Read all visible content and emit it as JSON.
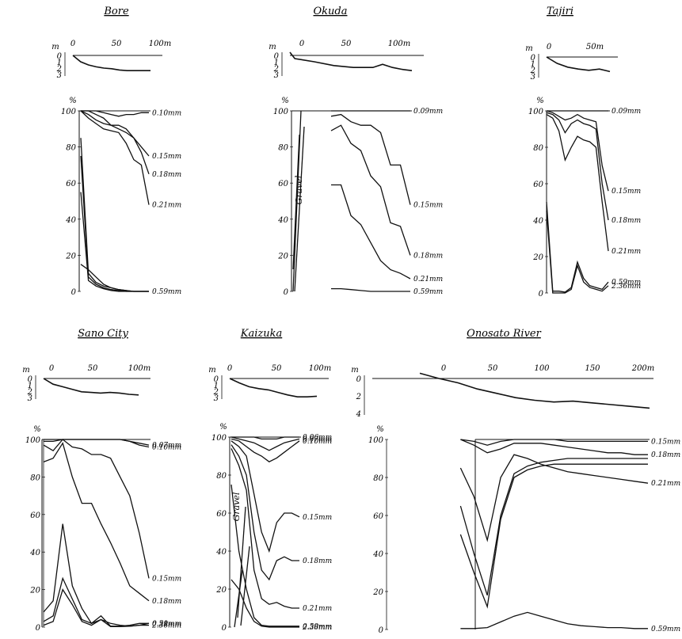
{
  "figure": {
    "panels": [
      {
        "title": "Bore",
        "profile": {
          "x_ticks": [
            "0",
            "50",
            "100m"
          ],
          "y_unit": "m",
          "y_ticks": [
            "0",
            "1",
            "2",
            "3"
          ]
        },
        "grain": {
          "y_unit": "%",
          "y_ticks": [
            "100",
            "80",
            "60",
            "40",
            "20",
            "0"
          ]
        }
      },
      {
        "title": "Okuda",
        "profile": {
          "x_ticks": [
            "0",
            "50",
            "100m"
          ],
          "y_unit": "m",
          "y_ticks": [
            "0",
            "1",
            "2",
            "3"
          ]
        },
        "grain": {
          "y_unit": "%",
          "y_ticks": [
            "100",
            "80",
            "60",
            "40",
            "20",
            "0"
          ]
        },
        "annotation": "Gravel"
      },
      {
        "title": "Tajiri",
        "profile": {
          "x_ticks": [
            "0",
            "50m"
          ],
          "y_unit": "m",
          "y_ticks": [
            "0",
            "1",
            "2",
            "3"
          ]
        },
        "grain": {
          "y_unit": "%",
          "y_ticks": [
            "100",
            "80",
            "60",
            "40",
            "20",
            "0"
          ]
        }
      },
      {
        "title": "Sano City",
        "profile": {
          "x_ticks": [
            "0",
            "50",
            "100m"
          ],
          "y_unit": "m",
          "y_ticks": [
            "0",
            "1",
            "2",
            "3"
          ]
        },
        "grain": {
          "y_unit": "%",
          "y_ticks": [
            "100",
            "80",
            "60",
            "40",
            "20",
            "0"
          ]
        }
      },
      {
        "title": "Kaizuka",
        "profile": {
          "x_ticks": [
            "0",
            "50",
            "100m"
          ],
          "y_unit": "m",
          "y_ticks": [
            "0",
            "1",
            "2",
            "3"
          ]
        },
        "grain": {
          "y_unit": "%",
          "y_ticks": [
            "100",
            "80",
            "60",
            "40",
            "20",
            "0"
          ]
        },
        "annotation": "Gravel"
      },
      {
        "title": "Onosato River",
        "profile": {
          "x_ticks": [
            "0",
            "50",
            "100",
            "150",
            "200m"
          ],
          "y_unit": "m",
          "y_ticks": [
            "0",
            "2",
            "4"
          ]
        },
        "grain": {
          "y_unit": "%",
          "y_ticks": [
            "100",
            "80",
            "60",
            "40",
            "20",
            "0"
          ]
        }
      }
    ]
  },
  "chart_data": [
    {
      "type": "line",
      "title": "Bore",
      "part": "beach profile",
      "x": [
        0,
        10,
        20,
        30,
        40,
        50,
        60,
        70,
        80,
        90,
        100
      ],
      "xlim": [
        0,
        100
      ],
      "ylim": [
        3,
        0
      ],
      "series": [
        {
          "values": [
            0,
            1,
            1.5,
            1.8,
            2,
            2.1,
            2.3,
            2.4,
            2.4,
            2.4,
            2.4
          ]
        }
      ]
    },
    {
      "type": "line",
      "title": "Bore",
      "part": "grain size",
      "ylim": [
        0,
        100
      ],
      "x": [
        0,
        10,
        20,
        30,
        40,
        50,
        60,
        70,
        80,
        90
      ],
      "xlim": [
        0,
        90
      ],
      "series": [
        {
          "name": "0.10mm",
          "values": [
            100,
            100,
            100,
            99,
            98,
            97,
            98,
            98,
            99,
            99
          ]
        },
        {
          "name": "0.15mm",
          "values": [
            100,
            100,
            98,
            96,
            92,
            90,
            88,
            85,
            80,
            75
          ]
        },
        {
          "name": "0.18mm",
          "values": [
            100,
            98,
            95,
            93,
            92,
            92,
            90,
            85,
            77,
            65
          ]
        },
        {
          "name": "0.21mm",
          "values": [
            100,
            96,
            93,
            90,
            89,
            88,
            82,
            73,
            70,
            48
          ]
        },
        {
          "name": "0.59mm",
          "values": [
            15,
            12,
            8,
            4,
            2,
            1,
            0.5,
            0,
            0,
            0
          ]
        },
        {
          "values": [
            85,
            10,
            5,
            3,
            2,
            1,
            0.5,
            0,
            0,
            0
          ]
        },
        {
          "values": [
            75,
            8,
            4,
            2,
            1,
            0.5,
            0,
            0,
            0,
            0
          ]
        },
        {
          "values": [
            55,
            6,
            3,
            1.5,
            0.5,
            0,
            0,
            0,
            0,
            0
          ]
        }
      ]
    },
    {
      "type": "line",
      "title": "Okuda",
      "part": "beach profile",
      "x": [
        -5,
        0,
        20,
        40,
        60,
        70,
        80,
        90,
        100,
        110,
        120
      ],
      "xlim": [
        -5,
        120
      ],
      "ylim": [
        3,
        0
      ],
      "series": [
        {
          "values": [
            -0.5,
            0.5,
            1,
            1.6,
            1.9,
            1.9,
            1.9,
            1.4,
            1.9,
            2.2,
            2.4
          ]
        }
      ]
    },
    {
      "type": "line",
      "title": "Okuda",
      "part": "grain size",
      "ylim": [
        0,
        100
      ],
      "x": [
        40,
        50,
        60,
        70,
        80,
        90,
        100,
        110,
        120
      ],
      "xlim": [
        0,
        120
      ],
      "series": [
        {
          "name": "0.09mm",
          "values": [
            100,
            100,
            100,
            100,
            100,
            100,
            100,
            100,
            100
          ]
        },
        {
          "name": "0.15mm",
          "values": [
            97,
            98,
            94,
            92,
            92,
            88,
            70,
            70,
            48
          ]
        },
        {
          "name": "0.18mm",
          "values": [
            89,
            92,
            82,
            78,
            64,
            58,
            38,
            36,
            20
          ]
        },
        {
          "name": "0.21mm",
          "values": [
            59,
            59,
            42,
            37,
            27,
            17,
            12,
            10,
            7
          ]
        },
        {
          "name": "0.59mm",
          "values": [
            1.5,
            1.5,
            1,
            0.5,
            0,
            0,
            0,
            0,
            0
          ]
        }
      ]
    },
    {
      "type": "line",
      "title": "Tajiri",
      "part": "beach profile",
      "x": [
        0,
        10,
        20,
        30,
        40,
        50,
        60
      ],
      "xlim": [
        0,
        60
      ],
      "ylim": [
        3,
        0
      ],
      "series": [
        {
          "values": [
            0,
            1,
            1.6,
            1.9,
            2.1,
            1.9,
            2.3
          ]
        }
      ]
    },
    {
      "type": "line",
      "title": "Tajiri",
      "part": "grain size",
      "ylim": [
        0,
        100
      ],
      "x": [
        0,
        5,
        10,
        15,
        20,
        25,
        30,
        35,
        40,
        45,
        50
      ],
      "xlim": [
        0,
        50
      ],
      "series": [
        {
          "name": "0.09mm",
          "values": [
            100,
            100,
            100,
            100,
            100,
            100,
            100,
            100,
            100,
            100,
            100
          ]
        },
        {
          "name": "0.15mm",
          "values": [
            100,
            99,
            97,
            95,
            96,
            98,
            96,
            95,
            94,
            70,
            56
          ]
        },
        {
          "name": "0.18mm",
          "values": [
            99,
            98,
            95,
            88,
            93,
            95,
            93,
            92,
            90,
            60,
            40
          ]
        },
        {
          "name": "0.21mm",
          "values": [
            98,
            96,
            89,
            73,
            80,
            86,
            84,
            83,
            80,
            50,
            23
          ]
        },
        {
          "name": "0.59mm",
          "values": [
            50,
            1,
            1,
            0.5,
            3,
            17,
            8,
            4,
            3,
            2,
            6
          ]
        },
        {
          "name": "2.36mm",
          "values": [
            45,
            0,
            0,
            0,
            2,
            15,
            6,
            3,
            2,
            1,
            4
          ]
        }
      ]
    },
    {
      "type": "line",
      "title": "Sano City",
      "part": "beach profile",
      "x": [
        0,
        10,
        20,
        30,
        40,
        50,
        60,
        70,
        80,
        90,
        100
      ],
      "xlim": [
        0,
        100
      ],
      "ylim": [
        3,
        0
      ],
      "series": [
        {
          "values": [
            0,
            0.9,
            1.3,
            1.7,
            2.1,
            2.2,
            2.3,
            2.2,
            2.3,
            2.5,
            2.6
          ]
        }
      ]
    },
    {
      "type": "line",
      "title": "Sano City",
      "part": "grain size",
      "ylim": [
        0,
        100
      ],
      "x": [
        0,
        10,
        20,
        30,
        40,
        50,
        60,
        70,
        80,
        90,
        100,
        110
      ],
      "xlim": [
        0,
        110
      ],
      "series": [
        {
          "name": "0.07mm",
          "values": [
            100,
            100,
            100,
            100,
            100,
            100,
            100,
            100,
            100,
            99,
            98,
            97
          ]
        },
        {
          "name": "0.10mm",
          "values": [
            99,
            99,
            100,
            100,
            100,
            100,
            100,
            100,
            100,
            99,
            97,
            96
          ]
        },
        {
          "name": "0.15mm",
          "values": [
            97,
            94,
            100,
            96,
            95,
            92,
            92,
            90,
            80,
            70,
            50,
            26
          ]
        },
        {
          "name": "0.18mm",
          "values": [
            88,
            90,
            98,
            80,
            66,
            66,
            55,
            45,
            34,
            22,
            18,
            14
          ]
        },
        {
          "name": "0.21mm",
          "values": [
            8,
            14,
            55,
            22,
            10,
            2,
            4,
            2,
            1,
            0.5,
            1,
            2
          ]
        },
        {
          "name": "0.59mm",
          "values": [
            3,
            6,
            26,
            15,
            4,
            2,
            6,
            0.5,
            0.5,
            1,
            2,
            2
          ]
        },
        {
          "name": "2.36mm",
          "values": [
            1,
            3,
            20,
            12,
            3,
            1,
            4,
            0.3,
            0.3,
            0.5,
            1,
            1
          ]
        }
      ]
    },
    {
      "type": "line",
      "title": "Kaizuka",
      "part": "beach profile",
      "x": [
        0,
        10,
        20,
        30,
        40,
        50,
        60,
        70,
        80,
        90
      ],
      "xlim": [
        0,
        90
      ],
      "ylim": [
        3,
        0
      ],
      "series": [
        {
          "values": [
            0,
            0.7,
            1.3,
            1.6,
            1.8,
            2.2,
            2.6,
            2.9,
            2.9,
            2.8
          ]
        }
      ]
    },
    {
      "type": "line",
      "title": "Kaizuka",
      "part": "grain size",
      "ylim": [
        0,
        100
      ],
      "x": [
        0,
        10,
        20,
        30,
        40,
        50,
        60,
        70,
        80,
        90
      ],
      "xlim": [
        0,
        90
      ],
      "series": [
        {
          "name": "0.06mm",
          "values": [
            100,
            100,
            100,
            100,
            99,
            99,
            99,
            100,
            100,
            100
          ]
        },
        {
          "name": "0.07mm",
          "values": [
            100,
            99,
            98,
            97,
            95,
            93,
            95,
            97,
            98,
            99
          ]
        },
        {
          "name": "0.10mm",
          "values": [
            99,
            98,
            95,
            92,
            90,
            87,
            89,
            92,
            95,
            98
          ]
        },
        {
          "name": "0.15mm",
          "values": [
            98,
            95,
            90,
            70,
            50,
            40,
            55,
            60,
            60,
            58
          ]
        },
        {
          "name": "0.18mm",
          "values": [
            96,
            90,
            80,
            50,
            30,
            25,
            35,
            37,
            35,
            35
          ]
        },
        {
          "name": "0.21mm",
          "values": [
            94,
            85,
            72,
            30,
            15,
            12,
            13,
            11,
            10,
            10
          ]
        },
        {
          "name": "0.59mm",
          "values": [
            75,
            40,
            20,
            5,
            1,
            0.5,
            0.5,
            0.5,
            0.5,
            0.5
          ]
        },
        {
          "name": "2.36mm",
          "values": [
            25,
            20,
            10,
            3,
            0.5,
            0,
            0,
            0,
            0,
            0
          ]
        }
      ]
    },
    {
      "type": "line",
      "title": "Onosato River",
      "part": "beach profile",
      "x": [
        -20,
        0,
        20,
        40,
        60,
        80,
        100,
        120,
        140,
        160,
        180,
        200,
        220
      ],
      "xlim": [
        -20,
        220
      ],
      "ylim": [
        4,
        -1
      ],
      "series": [
        {
          "values": [
            -0.6,
            0,
            0.5,
            1.2,
            1.7,
            2.2,
            2.5,
            2.7,
            2.6,
            2.8,
            3.0,
            3.2,
            3.4
          ]
        }
      ]
    },
    {
      "type": "line",
      "title": "Onosato River",
      "part": "grain size",
      "ylim": [
        0,
        100
      ],
      "x": [
        60,
        70,
        80,
        90,
        100,
        110,
        120,
        130,
        140,
        150,
        160,
        170,
        180,
        190,
        200
      ],
      "xlim": [
        0,
        200
      ],
      "series": [
        {
          "name": "0.15mm",
          "values": [
            100,
            99,
            97,
            99,
            100,
            100,
            100,
            100,
            99,
            99,
            99,
            99,
            99,
            99,
            99
          ]
        },
        {
          "name": "0.18mm",
          "values": [
            100,
            97,
            93,
            95,
            98,
            98,
            98,
            97,
            96,
            95,
            94,
            93,
            93,
            92,
            92
          ]
        },
        {
          "name": "0.21mm",
          "values": [
            85,
            70,
            47,
            80,
            92,
            90,
            87,
            85,
            83,
            82,
            81,
            80,
            79,
            78,
            77
          ]
        },
        {
          "values": [
            65,
            40,
            18,
            60,
            82,
            86,
            88,
            89,
            90,
            90,
            90,
            90,
            90,
            90,
            90
          ]
        },
        {
          "values": [
            50,
            30,
            12,
            58,
            80,
            84,
            86,
            87,
            87,
            87,
            87,
            87,
            87,
            87,
            87
          ]
        },
        {
          "name": "0.59mm",
          "values": [
            0.5,
            0.5,
            1,
            4,
            7,
            9,
            7,
            5,
            3,
            2,
            1.5,
            1,
            1,
            0.5,
            0.5
          ]
        }
      ]
    }
  ]
}
